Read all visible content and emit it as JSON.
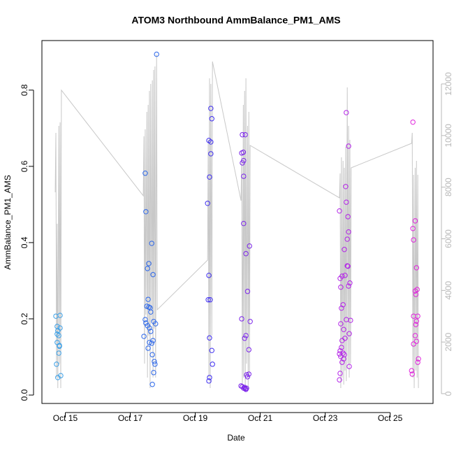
{
  "chart_data": {
    "type": "scatter",
    "title": "ATOM3 Northbound AmmBalance_PM1_AMS",
    "xlabel": "Date",
    "ylabel": "AmmBalance_PM1_AMS",
    "xlim": [
      14.28,
      26.32
    ],
    "ylim": [
      -0.022,
      0.93
    ],
    "xticks": [
      {
        "value": 15,
        "label": "Oct 15"
      },
      {
        "value": 17,
        "label": "Oct 17"
      },
      {
        "value": 19,
        "label": "Oct 19"
      },
      {
        "value": 21,
        "label": "Oct 21"
      },
      {
        "value": 23,
        "label": "Oct 23"
      },
      {
        "value": 25,
        "label": "Oct 25"
      }
    ],
    "yticks": [
      {
        "value": 0,
        "label": "0.0"
      },
      0.2,
      0.4,
      0.6,
      0.8
    ],
    "y2lim": [
      -380,
      13680
    ],
    "y2ticks": [
      0,
      2000,
      4000,
      6000,
      8000,
      10000,
      12000
    ],
    "y2color": "#b8b8b8",
    "groups": [
      {
        "color": "#3aa0e8",
        "x": [
          14.71,
          14.75,
          14.8,
          14.75,
          14.75,
          14.84,
          14.84,
          14.82,
          14.8,
          14.77,
          14.73,
          14.77,
          14.86,
          14.82
        ],
        "y": [
          0.207,
          0.18,
          0.156,
          0.138,
          0.16,
          0.209,
          0.176,
          0.128,
          0.11,
          0.169,
          0.081,
          0.046,
          0.051,
          0.13
        ]
      },
      {
        "color": "#2a66ea",
        "x": [
          17.46,
          17.48,
          17.53,
          17.57,
          17.55,
          17.51,
          17.57,
          17.61,
          17.63,
          17.66,
          17.7,
          17.46,
          17.48,
          17.53,
          17.59,
          17.63,
          17.7,
          17.66,
          17.55,
          17.59,
          17.68,
          17.74,
          17.76,
          17.72,
          17.68,
          17.78,
          17.42,
          17.81,
          17.72
        ],
        "y": [
          0.582,
          0.481,
          0.332,
          0.345,
          0.251,
          0.233,
          0.231,
          0.229,
          0.218,
          0.398,
          0.316,
          0.198,
          0.189,
          0.182,
          0.176,
          0.167,
          0.143,
          0.136,
          0.123,
          0.138,
          0.106,
          0.088,
          0.081,
          0.059,
          0.028,
          0.187,
          0.154,
          0.894,
          0.193
        ]
      },
      {
        "color": "#3d2cf0",
        "x": [
          19.48,
          19.51,
          19.42,
          19.48,
          19.48,
          19.44,
          19.38,
          19.42,
          19.4,
          19.46,
          19.44,
          19.51,
          19.53,
          19.44,
          19.42
        ],
        "y": [
          0.752,
          0.725,
          0.668,
          0.664,
          0.633,
          0.572,
          0.503,
          0.314,
          0.25,
          0.25,
          0.15,
          0.117,
          0.081,
          0.046,
          0.037
        ]
      },
      {
        "color": "#7a22ea",
        "x": [
          20.45,
          20.54,
          20.48,
          20.43,
          20.49,
          20.45,
          20.49,
          20.49,
          20.56,
          20.67,
          20.61,
          20.43,
          20.69,
          20.56,
          20.52,
          20.65,
          20.58,
          20.65,
          20.61,
          20.41,
          20.45,
          20.52,
          20.54,
          20.56,
          20.58,
          20.49
        ],
        "y": [
          0.683,
          0.683,
          0.637,
          0.635,
          0.615,
          0.609,
          0.574,
          0.45,
          0.371,
          0.391,
          0.272,
          0.2,
          0.193,
          0.156,
          0.149,
          0.119,
          0.053,
          0.055,
          0.048,
          0.024,
          0.022,
          0.02,
          0.017,
          0.015,
          0.018,
          0.018
        ]
      },
      {
        "color": "#b322e8",
        "x": [
          23.65,
          23.72,
          23.63,
          23.65,
          23.7,
          23.44,
          23.72,
          23.68,
          23.59,
          23.68,
          23.7,
          23.52,
          23.61,
          23.46,
          23.76,
          23.72,
          23.48,
          23.55,
          23.5,
          23.65,
          23.78,
          23.48,
          23.57,
          23.74,
          23.52,
          23.61,
          23.5,
          23.46,
          23.55,
          23.48,
          23.57,
          23.52,
          23.44,
          23.59,
          23.74,
          23.46,
          23.44
        ],
        "y": [
          0.741,
          0.653,
          0.547,
          0.506,
          0.468,
          0.483,
          0.428,
          0.409,
          0.382,
          0.339,
          0.338,
          0.312,
          0.314,
          0.306,
          0.294,
          0.286,
          0.283,
          0.237,
          0.228,
          0.198,
          0.196,
          0.187,
          0.172,
          0.161,
          0.143,
          0.149,
          0.125,
          0.116,
          0.11,
          0.101,
          0.095,
          0.086,
          0.108,
          0.106,
          0.075,
          0.057,
          0.04
        ]
      },
      {
        "color": "#e022dc",
        "x": [
          25.7,
          25.77,
          25.7,
          25.72,
          25.81,
          25.83,
          25.77,
          25.79,
          25.72,
          25.85,
          25.81,
          25.79,
          25.77,
          25.81,
          25.72,
          25.87,
          25.85,
          25.66,
          25.68
        ],
        "y": [
          0.716,
          0.457,
          0.437,
          0.407,
          0.334,
          0.277,
          0.273,
          0.264,
          0.207,
          0.207,
          0.194,
          0.185,
          0.156,
          0.141,
          0.134,
          0.095,
          0.086,
          0.064,
          0.055
        ]
      }
    ],
    "line": {
      "axis": "y2",
      "color": "#c8c8c8",
      "x": [
        14.69,
        14.71,
        14.73,
        14.75,
        14.77,
        14.8,
        14.82,
        14.84,
        14.86,
        14.88,
        17.4,
        17.42,
        17.44,
        17.46,
        17.48,
        17.51,
        17.53,
        17.55,
        17.57,
        17.59,
        17.61,
        17.63,
        17.66,
        17.68,
        17.7,
        17.72,
        17.74,
        17.76,
        17.78,
        17.81,
        17.83,
        19.38,
        19.4,
        19.42,
        19.44,
        19.46,
        19.48,
        19.51,
        19.53,
        20.41,
        20.43,
        20.45,
        20.48,
        20.49,
        20.52,
        20.54,
        20.56,
        20.58,
        20.61,
        20.63,
        20.65,
        20.67,
        20.69,
        23.44,
        23.46,
        23.48,
        23.5,
        23.52,
        23.55,
        23.57,
        23.59,
        23.61,
        23.63,
        23.65,
        23.68,
        23.7,
        23.72,
        23.74,
        23.76,
        23.78,
        23.8,
        25.66,
        25.68,
        25.7,
        25.72,
        25.74,
        25.77,
        25.79,
        25.81,
        25.83,
        25.85,
        25.87
      ],
      "values": [
        7802,
        10105,
        623,
        6583,
        217,
        10375,
        1165,
        10511,
        217,
        11757,
        7667,
        9969,
        1165,
        10240,
        3061,
        10917,
        623,
        11188,
        2248,
        11730,
        217,
        12001,
        2790,
        12136,
        623,
        12543,
        2519,
        12678,
        623,
        13139,
        3251,
        5174,
        9834,
        623,
        12218,
        217,
        12001,
        2248,
        12868,
        7477,
        9292,
        217,
        11188,
        623,
        11730,
        81,
        12218,
        1165,
        10375,
        217,
        10917,
        759,
        9617,
        7585,
        8533,
        217,
        9156,
        623,
        9021,
        352,
        8750,
        894,
        9563,
        488,
        11865,
        1165,
        10375,
        623,
        9834,
        1165,
        8750,
        9698,
        10105,
        623,
        8479,
        217,
        8750,
        894,
        9021,
        623,
        8479,
        217
      ]
    }
  }
}
